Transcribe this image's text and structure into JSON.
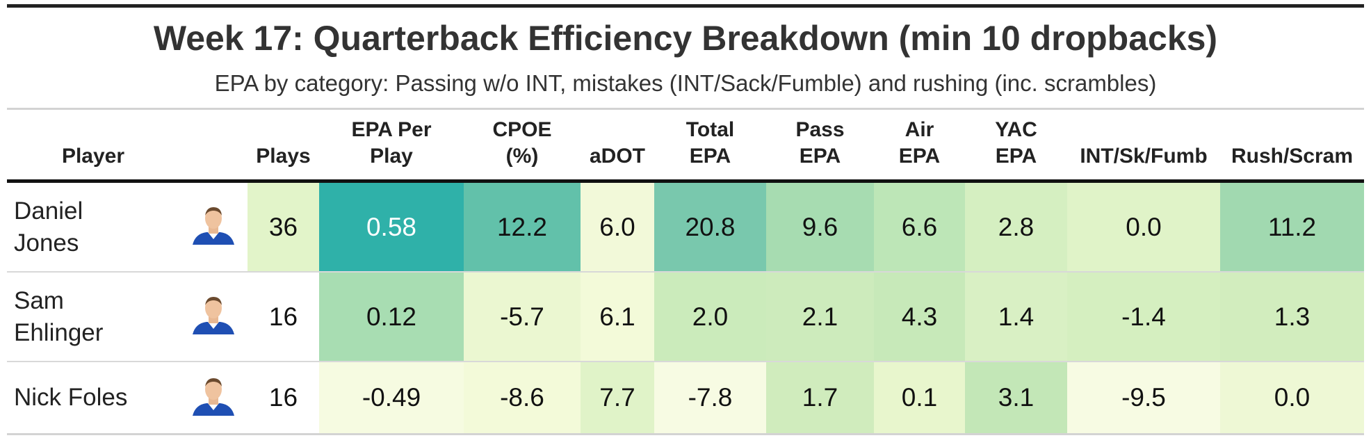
{
  "header": {
    "title": "Week 17: Quarterback Efficiency Breakdown (min 10 dropbacks)",
    "subtitle": "EPA by category: Passing w/o INT, mistakes (INT/Sack/Fumble) and rushing (inc. scrambles)"
  },
  "table": {
    "columns": [
      "Player",
      "Plays",
      "EPA Per\nPlay",
      "CPOE\n(%)",
      "aDOT",
      "Total\nEPA",
      "Pass\nEPA",
      "Air\nEPA",
      "YAC\nEPA",
      "INT/Sk/Fumb",
      "Rush/Scram"
    ],
    "rows": [
      {
        "player": "Daniel\nJones",
        "cells": [
          "36",
          "0.58",
          "12.2",
          "6.0",
          "20.8",
          "9.6",
          "6.6",
          "2.8",
          "0.0",
          "11.2"
        ],
        "colors": [
          "#e2f4c9",
          "#2fb1a9",
          "#62c1aa",
          "#f2f9d9",
          "#79c8ad",
          "#a7dcb1",
          "#bde6b7",
          "#d5efc1",
          "#e0f3c8",
          "#a1d9b0"
        ]
      },
      {
        "player": "Sam\nEhlinger",
        "cells": [
          "16",
          "0.12",
          "-5.7",
          "6.1",
          "2.0",
          "2.1",
          "4.3",
          "1.4",
          "-1.4",
          "1.3"
        ],
        "colors": [
          "#ffffff",
          "#a8ddb2",
          "#ebf7d1",
          "#f3fad9",
          "#cbebbb",
          "#cdebbc",
          "#c7e9b9",
          "#d9f0c4",
          "#d5efc0",
          "#d2edbe"
        ]
      },
      {
        "player": "Nick Foles",
        "cells": [
          "16",
          "-0.49",
          "-8.6",
          "7.7",
          "-7.8",
          "1.7",
          "0.1",
          "3.1",
          "-9.5",
          "0.0"
        ],
        "colors": [
          "#ffffff",
          "#f6fbe1",
          "#f3fad9",
          "#e0f3c8",
          "#f7fbe3",
          "#d0ecbd",
          "#e8f6cd",
          "#c3e7b7",
          "#f7fbe3",
          "#eef8d5"
        ]
      }
    ]
  }
}
